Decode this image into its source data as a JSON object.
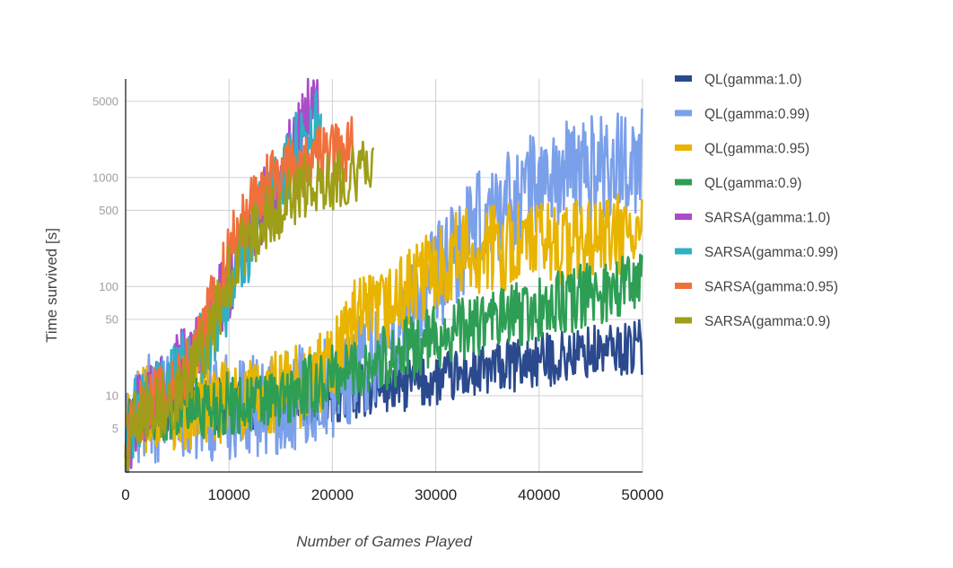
{
  "chart_data": {
    "type": "line",
    "title": "",
    "xlabel": "Number of Games Played",
    "ylabel": "Time survived [s]",
    "xlim": [
      0,
      50000
    ],
    "ylim": [
      2,
      8000
    ],
    "yscale": "log",
    "grid": true,
    "legend_position": "right",
    "x_ticks": [
      0,
      10000,
      20000,
      30000,
      40000,
      50000
    ],
    "x_tick_labels": [
      "0",
      "10000",
      "20000",
      "30000",
      "40000",
      "50000"
    ],
    "y_ticks": [
      5,
      10,
      50,
      100,
      500,
      1000,
      5000
    ],
    "y_tick_labels": [
      "5",
      "10",
      "50",
      "100",
      "500",
      "1000",
      "5000"
    ],
    "series": [
      {
        "name": "QL(gamma:1.0)",
        "color": "#2b4a8e",
        "x": [
          0,
          500,
          2000,
          5000,
          8000,
          12000,
          15000,
          18000,
          20000,
          25000,
          30000,
          35000,
          40000,
          45000,
          50000
        ],
        "y": [
          3,
          6,
          7.5,
          8,
          8,
          8.5,
          8.5,
          9,
          10,
          12,
          14,
          17,
          21,
          25,
          28
        ],
        "noise": 0.25
      },
      {
        "name": "QL(gamma:0.99)",
        "color": "#7ba0ea",
        "x": [
          0,
          500,
          2000,
          5000,
          8000,
          12000,
          16000,
          18000,
          20000,
          22000,
          25000,
          28000,
          30000,
          32000,
          34000,
          36000,
          38000,
          40000,
          43000,
          46000,
          50000
        ],
        "y": [
          3,
          6,
          7.5,
          8,
          8,
          8.5,
          9,
          10,
          13,
          18,
          28,
          60,
          120,
          200,
          350,
          550,
          700,
          900,
          1100,
          1300,
          1500
        ],
        "noise": 0.5
      },
      {
        "name": "QL(gamma:0.95)",
        "color": "#e8b400",
        "x": [
          0,
          500,
          2000,
          5000,
          8000,
          12000,
          15000,
          18000,
          20000,
          21000,
          22000,
          25000,
          28000,
          30000,
          32000,
          35000,
          38000,
          40000,
          45000,
          50000
        ],
        "y": [
          3,
          6,
          7.5,
          8,
          8.5,
          9,
          11,
          14,
          20,
          35,
          45,
          60,
          100,
          150,
          200,
          220,
          240,
          250,
          260,
          300
        ],
        "noise": 0.4
      },
      {
        "name": "QL(gamma:0.9)",
        "color": "#2e9e55",
        "x": [
          0,
          500,
          2000,
          5000,
          8000,
          12000,
          15000,
          18000,
          20000,
          22000,
          25000,
          28000,
          30000,
          33000,
          36000,
          40000,
          43000,
          46000,
          50000
        ],
        "y": [
          3,
          6,
          7.5,
          8,
          8,
          8.5,
          9,
          12,
          15,
          18,
          22,
          28,
          35,
          42,
          50,
          60,
          75,
          90,
          120
        ],
        "noise": 0.3
      },
      {
        "name": "SARSA(gamma:1.0)",
        "color": "#a94cc9",
        "x": [
          0,
          1000,
          2000,
          3000,
          4000,
          5000,
          6000,
          7000,
          8000,
          9000,
          10000,
          11000,
          12000,
          13000,
          14000,
          15000,
          16000,
          17000,
          18000,
          18700
        ],
        "y": [
          3,
          7,
          8,
          10,
          14,
          18,
          22,
          30,
          45,
          70,
          110,
          180,
          280,
          480,
          700,
          1100,
          1800,
          3000,
          5000,
          6000
        ],
        "noise": 0.35
      },
      {
        "name": "SARSA(gamma:0.99)",
        "color": "#2fb0c5",
        "x": [
          0,
          1000,
          2000,
          3000,
          4000,
          5000,
          6000,
          7000,
          8000,
          9000,
          10000,
          11000,
          12000,
          13000,
          14000,
          15000,
          16000,
          17000,
          18000,
          18900
        ],
        "y": [
          3,
          7,
          8.5,
          12,
          16,
          17,
          18,
          25,
          35,
          50,
          90,
          160,
          260,
          420,
          650,
          1000,
          1500,
          2200,
          3000,
          3200
        ],
        "noise": 0.35
      },
      {
        "name": "SARSA(gamma:0.95)",
        "color": "#f0703c",
        "x": [
          0,
          1000,
          2000,
          3000,
          4000,
          5000,
          6000,
          7000,
          8000,
          9000,
          10000,
          11000,
          12000,
          13000,
          14000,
          15000,
          16000,
          17000,
          18000,
          19000,
          20000,
          21000,
          22000
        ],
        "y": [
          3,
          7,
          8,
          9,
          10,
          12,
          18,
          30,
          60,
          100,
          200,
          400,
          600,
          800,
          900,
          1000,
          1200,
          1300,
          1500,
          1600,
          1700,
          1800,
          1900
        ],
        "noise": 0.3
      },
      {
        "name": "SARSA(gamma:0.9)",
        "color": "#9e9e18",
        "x": [
          0,
          1000,
          2000,
          3000,
          4000,
          5000,
          6000,
          7000,
          8000,
          9000,
          10000,
          11000,
          12000,
          13000,
          14000,
          15000,
          16000,
          17000,
          18000,
          19000,
          20000,
          21000,
          22000,
          23000,
          24000
        ],
        "y": [
          3,
          7,
          8,
          8,
          9,
          10,
          13,
          20,
          35,
          60,
          120,
          200,
          280,
          350,
          450,
          550,
          700,
          800,
          900,
          950,
          1000,
          1050,
          1100,
          1150,
          1200
        ],
        "noise": 0.3
      }
    ]
  }
}
